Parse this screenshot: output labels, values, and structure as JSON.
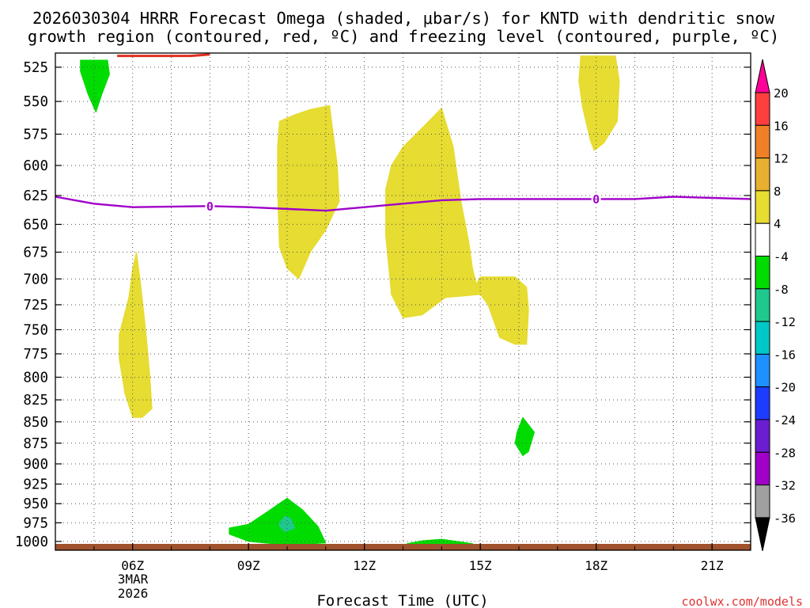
{
  "chart_data": {
    "type": "heatmap",
    "title_line1": "2026030304 HRRR Forecast Omega (shaded, μbar/s) for KNTD with dendritic snow",
    "title_line2": "growth region (contoured, red, ºC) and freezing level (contoured, purple, ºC)",
    "xlabel": "Forecast Time (UTC)",
    "credit": "coolwx.com/models",
    "x_ticks": [
      {
        "hour": 6,
        "label": "06Z"
      },
      {
        "hour": 9,
        "label": "09Z"
      },
      {
        "hour": 12,
        "label": "12Z"
      },
      {
        "hour": 15,
        "label": "15Z"
      },
      {
        "hour": 18,
        "label": "18Z"
      },
      {
        "hour": 21,
        "label": "21Z"
      }
    ],
    "date_label": [
      "3MAR",
      "2026"
    ],
    "xlim_hours": [
      4.0,
      22.0
    ],
    "y_ticks": [
      525,
      550,
      575,
      600,
      625,
      650,
      675,
      700,
      725,
      750,
      775,
      800,
      825,
      850,
      875,
      900,
      925,
      950,
      975,
      1000
    ],
    "ylim_mb": [
      515,
      1012
    ],
    "y_scale": "log-pressure",
    "grid": true,
    "colorbar": {
      "labels": [
        "20",
        "16",
        "12",
        "8",
        "4",
        "-4",
        "-8",
        "-12",
        "-16",
        "-20",
        "-24",
        "-28",
        "-32",
        "-36"
      ],
      "colors": [
        "#ff3f3f",
        "#f08028",
        "#e8b030",
        "#e6dc32",
        "#ffffff",
        "#00dc00",
        "#1fc88c",
        "#00c8c8",
        "#1e90ff",
        "#1e3cff",
        "#6a1ed0",
        "#a000c8",
        "#a0a0a0"
      ],
      "top_arrow_color": "#ff0099",
      "bottom_arrow_color": "#000000"
    },
    "freezing_level": {
      "label": "0",
      "color": "#a000c8",
      "points": [
        [
          4.0,
          626
        ],
        [
          5.0,
          632
        ],
        [
          6.0,
          635
        ],
        [
          8.0,
          634
        ],
        [
          9.0,
          635
        ],
        [
          11.0,
          638
        ],
        [
          12.0,
          635
        ],
        [
          14.0,
          629
        ],
        [
          15.0,
          628
        ],
        [
          18.0,
          628
        ],
        [
          19.0,
          628
        ],
        [
          20.0,
          626
        ],
        [
          22.0,
          628
        ]
      ]
    },
    "dgz_contour_color": "#e03020",
    "surface_color": "#a0522d",
    "omega_regions": [
      {
        "value_class": "4 to 8",
        "color": "#e6dc32",
        "points": [
          [
            5.65,
            755
          ],
          [
            5.9,
            718
          ],
          [
            6.0,
            690
          ],
          [
            6.1,
            675
          ],
          [
            6.2,
            702
          ],
          [
            6.35,
            755
          ],
          [
            6.45,
            800
          ],
          [
            6.5,
            835
          ],
          [
            6.25,
            845
          ],
          [
            6.0,
            845
          ],
          [
            5.8,
            818
          ],
          [
            5.65,
            780
          ]
        ]
      },
      {
        "value_class": "4 to 8",
        "color": "#e6dc32",
        "points": [
          [
            9.8,
            565
          ],
          [
            10.2,
            560
          ],
          [
            10.6,
            556
          ],
          [
            11.1,
            553
          ],
          [
            11.3,
            600
          ],
          [
            11.35,
            630
          ],
          [
            11.0,
            655
          ],
          [
            10.6,
            675
          ],
          [
            10.3,
            700
          ],
          [
            10.0,
            690
          ],
          [
            9.8,
            670
          ],
          [
            9.75,
            620
          ],
          [
            9.75,
            585
          ]
        ]
      },
      {
        "value_class": "4 to 8",
        "color": "#e6dc32",
        "points": [
          [
            13.0,
            585
          ],
          [
            13.5,
            570
          ],
          [
            14.0,
            555
          ],
          [
            14.3,
            585
          ],
          [
            14.5,
            630
          ],
          [
            14.7,
            665
          ],
          [
            14.8,
            690
          ],
          [
            14.9,
            705
          ],
          [
            15.0,
            698
          ],
          [
            15.9,
            698
          ],
          [
            16.2,
            708
          ],
          [
            16.25,
            730
          ],
          [
            16.2,
            765
          ],
          [
            15.9,
            765
          ],
          [
            15.5,
            758
          ],
          [
            15.2,
            725
          ],
          [
            15.0,
            715
          ],
          [
            14.1,
            718
          ],
          [
            13.5,
            735
          ],
          [
            13.0,
            738
          ],
          [
            12.7,
            715
          ],
          [
            12.55,
            660
          ],
          [
            12.55,
            620
          ],
          [
            12.7,
            600
          ]
        ]
      },
      {
        "value_class": "4 to 8",
        "color": "#e6dc32",
        "points": [
          [
            17.6,
            517
          ],
          [
            18.5,
            517
          ],
          [
            18.6,
            535
          ],
          [
            18.55,
            565
          ],
          [
            18.2,
            582
          ],
          [
            17.95,
            588
          ],
          [
            17.85,
            580
          ],
          [
            17.65,
            555
          ],
          [
            17.55,
            535
          ]
        ]
      },
      {
        "value_class": "-8 to -4",
        "color": "#00dc00",
        "points": [
          [
            4.65,
            520
          ],
          [
            5.35,
            520
          ],
          [
            5.4,
            530
          ],
          [
            5.2,
            545
          ],
          [
            5.05,
            558
          ],
          [
            4.85,
            545
          ],
          [
            4.65,
            528
          ]
        ]
      },
      {
        "value_class": "-8 to -4",
        "color": "#00dc00",
        "points": [
          [
            15.95,
            862
          ],
          [
            16.1,
            845
          ],
          [
            16.4,
            862
          ],
          [
            16.25,
            885
          ],
          [
            16.1,
            890
          ],
          [
            15.9,
            875
          ]
        ]
      },
      {
        "value_class": "-8 to -4",
        "color": "#00dc00",
        "points": [
          [
            8.5,
            982
          ],
          [
            9.0,
            977
          ],
          [
            9.5,
            960
          ],
          [
            10.0,
            943
          ],
          [
            10.4,
            958
          ],
          [
            10.8,
            980
          ],
          [
            11.0,
            1002
          ],
          [
            10.0,
            1005
          ],
          [
            9.0,
            1000
          ],
          [
            8.5,
            990
          ]
        ]
      },
      {
        "value_class": "-8 to -4",
        "color": "#00dc00",
        "points": [
          [
            13.1,
            1003
          ],
          [
            13.5,
            999
          ],
          [
            14.0,
            997
          ],
          [
            14.4,
            1000
          ],
          [
            14.8,
            1003
          ],
          [
            14.0,
            1005
          ],
          [
            13.3,
            1004
          ]
        ]
      },
      {
        "value_class": "-12 to -8",
        "color": "#1fc88c",
        "points": [
          [
            9.8,
            975
          ],
          [
            9.95,
            966
          ],
          [
            10.1,
            970
          ],
          [
            10.2,
            982
          ],
          [
            9.95,
            987
          ],
          [
            9.8,
            980
          ]
        ]
      }
    ],
    "dgz_segments": [
      {
        "points": [
          [
            5.6,
            517
          ],
          [
            7.5,
            517
          ],
          [
            8.0,
            516
          ]
        ],
        "note": "thin red contour near top"
      }
    ]
  }
}
